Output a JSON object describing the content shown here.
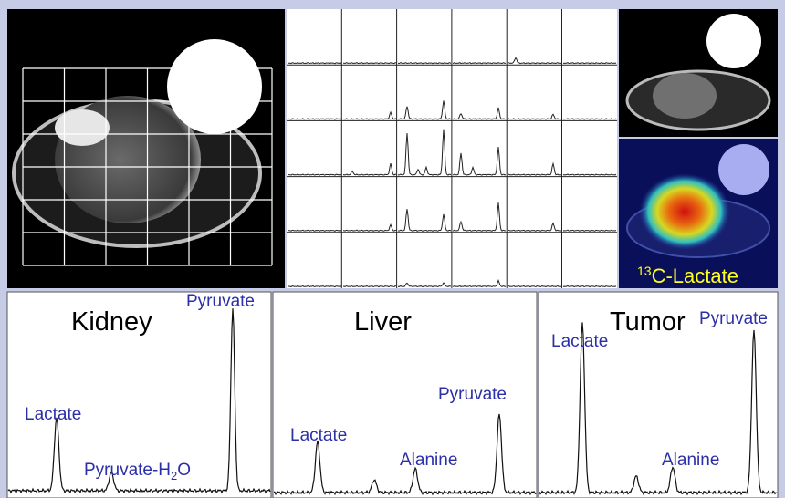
{
  "overlay_label": {
    "superscript": "13",
    "text": "C-Lactate"
  },
  "spectra": [
    {
      "title": "Kidney",
      "labels": [
        "Pyruvate",
        "Lactate"
      ],
      "hydrate": {
        "pre": "Pyruvate-H",
        "sub": "2",
        "post": "O"
      }
    },
    {
      "title": "Liver",
      "labels": [
        "Lactate",
        "Alanine",
        "Pyruvate"
      ]
    },
    {
      "title": "Tumor",
      "labels": [
        "Pyruvate",
        "Lactate",
        "Alanine"
      ]
    }
  ]
}
